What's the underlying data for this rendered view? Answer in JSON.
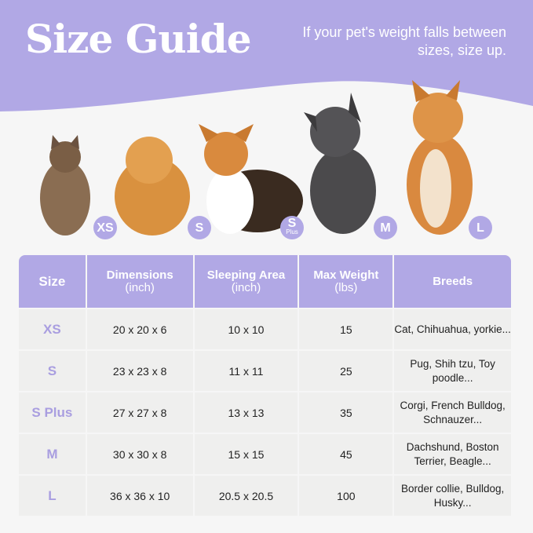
{
  "header": {
    "title": "Size Guide",
    "subtitle": "If your pet's weight falls between sizes, size up."
  },
  "colors": {
    "accent": "#b1a8e5",
    "size_text": "#a99ee0",
    "row_bg": "#efefee"
  },
  "pets": [
    {
      "animal": "cat",
      "badge": "XS"
    },
    {
      "animal": "pomeranian",
      "badge": "S"
    },
    {
      "animal": "corgi",
      "badge": "S",
      "badge_sub": "Plus"
    },
    {
      "animal": "french-bulldog",
      "badge": "M"
    },
    {
      "animal": "shiba-inu",
      "badge": "L"
    }
  ],
  "table": {
    "headers": [
      {
        "main": "Size",
        "sub": ""
      },
      {
        "main": "Dimensions",
        "sub": "(inch)"
      },
      {
        "main": "Sleeping Area",
        "sub": "(inch)"
      },
      {
        "main": "Max Weight",
        "sub": "(lbs)"
      },
      {
        "main": "Breeds",
        "sub": ""
      }
    ],
    "rows": [
      {
        "size": "XS",
        "dimensions": "20 x 20 x 6",
        "sleeping_area": "10 x 10",
        "max_weight": "15",
        "breeds": "Cat, Chihuahua, yorkie..."
      },
      {
        "size": "S",
        "dimensions": "23 x 23 x 8",
        "sleeping_area": "11 x 11",
        "max_weight": "25",
        "breeds": "Pug, Shih tzu, Toy poodle..."
      },
      {
        "size": "S Plus",
        "dimensions": "27 x 27 x 8",
        "sleeping_area": "13 x 13",
        "max_weight": "35",
        "breeds": "Corgi, French Bulldog, Schnauzer..."
      },
      {
        "size": "M",
        "dimensions": "30 x 30 x 8",
        "sleeping_area": "15 x 15",
        "max_weight": "45",
        "breeds": "Dachshund, Boston Terrier, Beagle..."
      },
      {
        "size": "L",
        "dimensions": "36 x 36 x 10",
        "sleeping_area": "20.5 x 20.5",
        "max_weight": "100",
        "breeds": "Border collie, Bulldog, Husky..."
      }
    ]
  }
}
